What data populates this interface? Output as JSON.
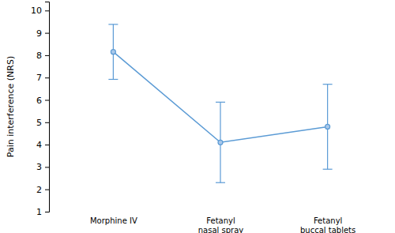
{
  "chart_data": {
    "type": "line",
    "categories": [
      "Morphine IV",
      "Fetanyl\nnasal spray",
      "Fetanyl\nbuccal tablets"
    ],
    "values": [
      8.15,
      4.1,
      4.8
    ],
    "errors": [
      1.23,
      1.8,
      1.9
    ],
    "y_label": "Pain interference (NRS)",
    "ylim": [
      1,
      10.4
    ],
    "yticks": [
      1,
      2,
      3,
      4,
      5,
      6,
      7,
      8,
      9,
      10
    ],
    "color": "#5b9bd5",
    "marker": "circle",
    "grid": false
  }
}
